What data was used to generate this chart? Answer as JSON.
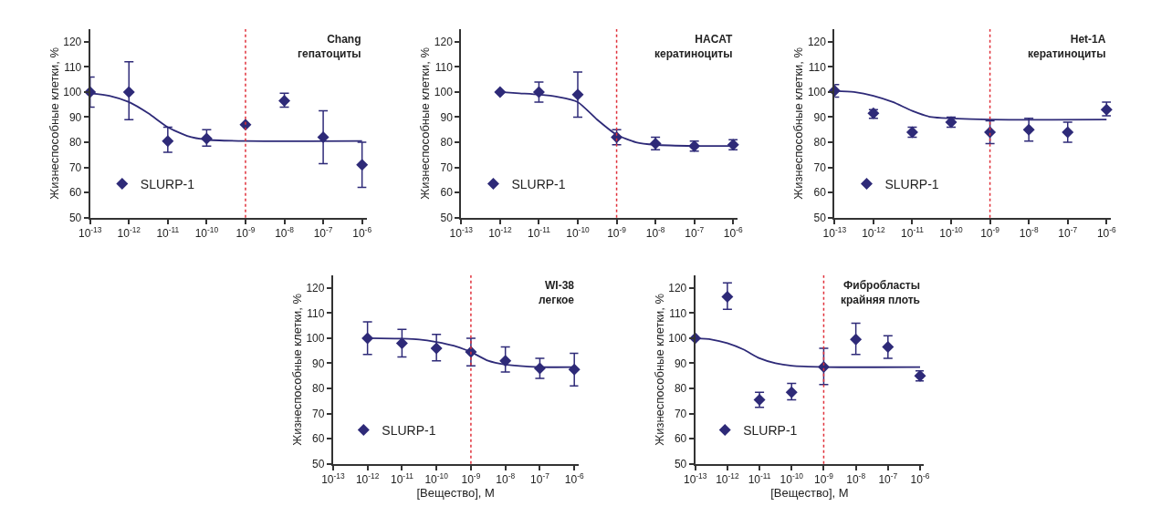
{
  "chart_data": [
    {
      "type": "scatter",
      "annotations": [
        "Chang\nгепатоциты"
      ],
      "ylabel": "Жизнеспособные клетки, %",
      "log": "x",
      "grid": false,
      "legend": "bottom left",
      "marker": "diamond",
      "xlim": [
        1e-13,
        1.3e-06
      ],
      "xticks": [
        {
          "value": 1e-13,
          "label": "10$^{-13}$"
        },
        {
          "value": 1e-12,
          "label": "10$^{-12}$"
        },
        {
          "value": 1e-11,
          "label": "10$^{-11}$"
        },
        {
          "value": 1e-10,
          "label": "10$^{-10}$"
        },
        {
          "value": 1e-09,
          "label": "10$^{-9}$"
        },
        {
          "value": 1e-08,
          "label": "10$^{-8}$"
        },
        {
          "value": 1e-07,
          "label": "10$^{-7}$"
        },
        {
          "value": 1e-06,
          "label": "10$^{-6}$"
        }
      ],
      "ylim": [
        50,
        125
      ],
      "yticks": [
        50,
        60,
        70,
        80,
        90,
        100,
        110,
        120
      ],
      "ref_lines": [
        {
          "axis": "x",
          "value": 1e-09,
          "color": "#e0303a",
          "line_style": "dotted"
        }
      ],
      "series": [
        {
          "name": "SLURP-1",
          "color": "#2e2a78",
          "x": [
            1e-13,
            1e-12,
            1e-11,
            1e-10,
            1e-09,
            1e-08,
            1e-07,
            1e-06
          ],
          "values": [
            100,
            100,
            80.5,
            81.5,
            87,
            96.5,
            82,
            71
          ],
          "errors": [
            [
              94,
              106
            ],
            [
              89,
              112
            ],
            [
              76,
              86
            ],
            [
              78.5,
              85
            ],
            null,
            [
              94,
              99.5
            ],
            [
              71.5,
              92.5
            ],
            [
              62,
              80
            ]
          ]
        },
        {
          "type": "line",
          "marker": "none",
          "color": "#2e2a78",
          "x": [
            1e-13,
            3.16e-13,
            1e-12,
            3.16e-12,
            1e-11,
            3.16e-11,
            1e-10,
            1e-09,
            1e-06
          ],
          "values": [
            99.5,
            98.5,
            96,
            91.5,
            86,
            82.5,
            81,
            80.5,
            80.5
          ]
        }
      ]
    },
    {
      "type": "scatter",
      "annotations": [
        "HACAT\nкератиноциты"
      ],
      "ylabel": "Жизнеспособные клетки, %",
      "log": "x",
      "grid": false,
      "legend": "bottom left",
      "marker": "diamond",
      "xlim": [
        1e-13,
        1.3e-06
      ],
      "xticks": [
        {
          "value": 1e-13,
          "label": "10$^{-13}$"
        },
        {
          "value": 1e-12,
          "label": "10$^{-12}$"
        },
        {
          "value": 1e-11,
          "label": "10$^{-11}$"
        },
        {
          "value": 1e-10,
          "label": "10$^{-10}$"
        },
        {
          "value": 1e-09,
          "label": "10$^{-9}$"
        },
        {
          "value": 1e-08,
          "label": "10$^{-8}$"
        },
        {
          "value": 1e-07,
          "label": "10$^{-7}$"
        },
        {
          "value": 1e-06,
          "label": "10$^{-6}$"
        }
      ],
      "ylim": [
        50,
        125
      ],
      "yticks": [
        50,
        60,
        70,
        80,
        90,
        100,
        110,
        120
      ],
      "ref_lines": [
        {
          "axis": "x",
          "value": 1e-09,
          "color": "#e0303a",
          "line_style": "dotted"
        }
      ],
      "series": [
        {
          "name": "SLURP-1",
          "color": "#2e2a78",
          "x": [
            1e-12,
            1e-11,
            1e-10,
            1e-09,
            1e-08,
            1e-07,
            1e-06
          ],
          "values": [
            100,
            100,
            99,
            82,
            79.5,
            78.5,
            79
          ],
          "errors": [
            null,
            [
              96,
              104
            ],
            [
              90,
              108
            ],
            [
              79,
              85
            ],
            [
              77,
              82
            ],
            [
              76.5,
              80.5
            ],
            [
              77,
              81
            ]
          ]
        },
        {
          "type": "line",
          "marker": "none",
          "color": "#2e2a78",
          "x": [
            1e-12,
            3.16e-12,
            1e-11,
            3.16e-11,
            1e-10,
            3.16e-10,
            1e-09,
            3.16e-09,
            1e-08,
            1e-07,
            1e-06
          ],
          "values": [
            100,
            99.5,
            99,
            98,
            96,
            89,
            83,
            80,
            79,
            78.5,
            78.5
          ]
        }
      ]
    },
    {
      "type": "scatter",
      "annotations": [
        "Het-1A\nкератиноциты"
      ],
      "ylabel": "Жизнеспособные клетки, %",
      "log": "x",
      "grid": false,
      "legend": "bottom left",
      "marker": "diamond",
      "xlim": [
        1e-13,
        1.3e-06
      ],
      "xticks": [
        {
          "value": 1e-13,
          "label": "10$^{-13}$"
        },
        {
          "value": 1e-12,
          "label": "10$^{-12}$"
        },
        {
          "value": 1e-11,
          "label": "10$^{-11}$"
        },
        {
          "value": 1e-10,
          "label": "10$^{-10}$"
        },
        {
          "value": 1e-09,
          "label": "10$^{-9}$"
        },
        {
          "value": 1e-08,
          "label": "10$^{-8}$"
        },
        {
          "value": 1e-07,
          "label": "10$^{-7}$"
        },
        {
          "value": 1e-06,
          "label": "10$^{-6}$"
        }
      ],
      "ylim": [
        50,
        125
      ],
      "yticks": [
        50,
        60,
        70,
        80,
        90,
        100,
        110,
        120
      ],
      "ref_lines": [
        {
          "axis": "x",
          "value": 1e-09,
          "color": "#e0303a",
          "line_style": "dotted"
        }
      ],
      "series": [
        {
          "name": "SLURP-1",
          "color": "#2e2a78",
          "x": [
            1e-13,
            1e-12,
            1e-11,
            1e-10,
            1e-09,
            1e-08,
            1e-07,
            1e-06
          ],
          "values": [
            100.5,
            91.5,
            84,
            88,
            84,
            85,
            84,
            93
          ],
          "errors": [
            [
              98,
              103
            ],
            [
              89.5,
              93
            ],
            [
              82,
              86
            ],
            [
              86,
              90
            ],
            [
              79.5,
              88.5
            ],
            [
              80.5,
              89.5
            ],
            [
              80,
              88
            ],
            [
              90.5,
              96
            ]
          ]
        },
        {
          "type": "line",
          "marker": "none",
          "color": "#2e2a78",
          "x": [
            1e-13,
            3.16e-13,
            1e-12,
            3.16e-12,
            1e-11,
            3.16e-11,
            1e-10,
            1e-09,
            1e-06
          ],
          "values": [
            100.5,
            100,
            98.5,
            96,
            92.5,
            90,
            89.5,
            89,
            89
          ]
        }
      ]
    },
    {
      "type": "scatter",
      "annotations": [
        "WI-38\nлегкое"
      ],
      "xlabel": "[Вещество], M",
      "ylabel": "Жизнеспособные клетки, %",
      "log": "x",
      "grid": false,
      "legend": "bottom left",
      "marker": "diamond",
      "xlim": [
        1e-13,
        1.3e-06
      ],
      "xticks": [
        {
          "value": 1e-13,
          "label": "10$^{-13}$"
        },
        {
          "value": 1e-12,
          "label": "10$^{-12}$"
        },
        {
          "value": 1e-11,
          "label": "10$^{-11}$"
        },
        {
          "value": 1e-10,
          "label": "10$^{-10}$"
        },
        {
          "value": 1e-09,
          "label": "10$^{-9}$"
        },
        {
          "value": 1e-08,
          "label": "10$^{-8}$"
        },
        {
          "value": 1e-07,
          "label": "10$^{-7}$"
        },
        {
          "value": 1e-06,
          "label": "10$^{-6}$"
        }
      ],
      "ylim": [
        50,
        125
      ],
      "yticks": [
        50,
        60,
        70,
        80,
        90,
        100,
        110,
        120
      ],
      "ref_lines": [
        {
          "axis": "x",
          "value": 1e-09,
          "color": "#e0303a",
          "line_style": "dotted"
        }
      ],
      "series": [
        {
          "name": "SLURP-1",
          "color": "#2e2a78",
          "x": [
            1e-12,
            1e-11,
            1e-10,
            1e-09,
            1e-08,
            1e-07,
            1e-06
          ],
          "values": [
            100,
            98,
            96,
            94.5,
            91,
            88,
            87.5
          ],
          "errors": [
            [
              93.5,
              106.5
            ],
            [
              92.5,
              103.5
            ],
            [
              91,
              101.5
            ],
            [
              89,
              100
            ],
            [
              86.5,
              96.5
            ],
            [
              84,
              92
            ],
            [
              81,
              94
            ]
          ]
        },
        {
          "type": "line",
          "marker": "none",
          "color": "#2e2a78",
          "x": [
            1e-12,
            1e-11,
            3.16e-11,
            1e-10,
            3.16e-10,
            1e-09,
            3.16e-09,
            1e-08,
            1e-07,
            1e-06
          ],
          "values": [
            100,
            99.8,
            99.5,
            98.5,
            97,
            94.5,
            91,
            89.5,
            88.5,
            88.5
          ]
        }
      ]
    },
    {
      "type": "scatter",
      "annotations": [
        "Фибробласты\nкрайняя плоть"
      ],
      "xlabel": "[Вещество], M",
      "ylabel": "Жизнеспособные клетки, %",
      "log": "x",
      "grid": false,
      "legend": "bottom left",
      "marker": "diamond",
      "xlim": [
        1e-13,
        1.3e-06
      ],
      "xticks": [
        {
          "value": 1e-13,
          "label": "10$^{-13}$"
        },
        {
          "value": 1e-12,
          "label": "10$^{-12}$"
        },
        {
          "value": 1e-11,
          "label": "10$^{-11}$"
        },
        {
          "value": 1e-10,
          "label": "10$^{-10}$"
        },
        {
          "value": 1e-09,
          "label": "10$^{-9}$"
        },
        {
          "value": 1e-08,
          "label": "10$^{-8}$"
        },
        {
          "value": 1e-07,
          "label": "10$^{-7}$"
        },
        {
          "value": 1e-06,
          "label": "10$^{-6}$"
        }
      ],
      "ylim": [
        50,
        125
      ],
      "yticks": [
        50,
        60,
        70,
        80,
        90,
        100,
        110,
        120
      ],
      "ref_lines": [
        {
          "axis": "x",
          "value": 1e-09,
          "color": "#e0303a",
          "line_style": "dotted"
        }
      ],
      "series": [
        {
          "name": "SLURP-1",
          "color": "#2e2a78",
          "x": [
            1e-13,
            1e-12,
            1e-11,
            1e-10,
            1e-09,
            1e-08,
            1e-07,
            1e-06
          ],
          "values": [
            100,
            116.5,
            75.5,
            78.5,
            88.5,
            99.5,
            96.5,
            85
          ],
          "errors": [
            null,
            [
              111.5,
              122
            ],
            [
              72.5,
              78.5
            ],
            [
              75.5,
              82
            ],
            [
              81.5,
              96
            ],
            [
              93.5,
              106
            ],
            [
              92,
              101
            ],
            [
              83,
              87
            ]
          ]
        },
        {
          "type": "line",
          "marker": "none",
          "color": "#2e2a78",
          "x": [
            1e-13,
            3.16e-13,
            1e-12,
            3.16e-12,
            1e-11,
            3.16e-11,
            1e-10,
            1e-09,
            1e-06
          ],
          "values": [
            100,
            99.5,
            98,
            95.5,
            92,
            90,
            89,
            88.5,
            88.5
          ]
        }
      ]
    }
  ]
}
